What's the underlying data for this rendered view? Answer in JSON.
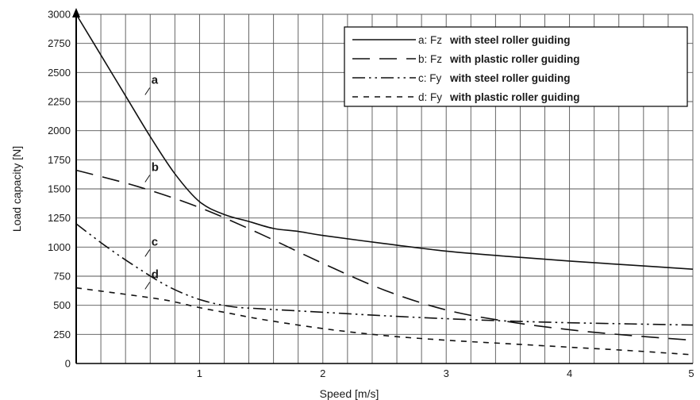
{
  "chart_data": {
    "type": "line",
    "xlabel": "Speed [m/s]",
    "ylabel": "Load capacity [N]",
    "xlim": [
      0,
      5
    ],
    "ylim": [
      0,
      3000
    ],
    "x_ticks": [
      "1",
      "2",
      "3",
      "4",
      "5"
    ],
    "y_ticks": [
      "0",
      "250",
      "500",
      "750",
      "1000",
      "1250",
      "1500",
      "1750",
      "2000",
      "2250",
      "2500",
      "2750",
      "3000"
    ],
    "grid": true,
    "legend_position": "top-right",
    "series": [
      {
        "name": "a",
        "legend_prefix": "a: Fz",
        "legend_desc": "with steel roller guiding",
        "curve_label": "a",
        "dash": "solid",
        "x": [
          0,
          0.2,
          0.4,
          0.6,
          0.8,
          1.0,
          1.2,
          1.4,
          1.6,
          1.8,
          2.0,
          2.5,
          3.0,
          3.5,
          4.0,
          4.5,
          5.0
        ],
        "y": [
          3000,
          2650,
          2300,
          1950,
          1630,
          1390,
          1280,
          1220,
          1160,
          1135,
          1100,
          1030,
          965,
          920,
          880,
          845,
          810
        ]
      },
      {
        "name": "b",
        "legend_prefix": "b: Fz",
        "legend_desc": "with plastic roller guiding",
        "curve_label": "b",
        "dash": "long-dash",
        "x": [
          0,
          0.5,
          1.0,
          1.5,
          2.0,
          2.5,
          3.0,
          3.5,
          4.0,
          4.5,
          5.0
        ],
        "y": [
          1660,
          1520,
          1340,
          1110,
          860,
          630,
          460,
          360,
          290,
          240,
          200
        ]
      },
      {
        "name": "c",
        "legend_prefix": "c: Fy",
        "legend_desc": "with steel roller guiding",
        "curve_label": "c",
        "dash": "dash-dot",
        "x": [
          0,
          0.25,
          0.5,
          0.75,
          1.0,
          1.25,
          1.5,
          2.0,
          2.5,
          3.0,
          3.5,
          4.0,
          4.5,
          5.0
        ],
        "y": [
          1200,
          1000,
          820,
          660,
          550,
          490,
          470,
          440,
          410,
          385,
          365,
          350,
          340,
          330
        ]
      },
      {
        "name": "d",
        "legend_prefix": "d: Fy",
        "legend_desc": "with plastic roller guiding",
        "curve_label": "d",
        "dash": "short-dash",
        "x": [
          0,
          0.25,
          0.5,
          0.75,
          1.0,
          1.25,
          1.5,
          2.0,
          2.5,
          3.0,
          3.5,
          4.0,
          4.5,
          5.0
        ],
        "y": [
          650,
          615,
          580,
          540,
          480,
          430,
          380,
          300,
          240,
          200,
          170,
          140,
          110,
          75
        ]
      }
    ],
    "curve_label_positions": [
      {
        "name": "a",
        "x": 0.52,
        "y": 2390
      },
      {
        "name": "b",
        "x": 0.52,
        "y": 1640
      },
      {
        "name": "c",
        "x": 0.52,
        "y": 1000
      },
      {
        "name": "d",
        "x": 0.52,
        "y": 720
      }
    ]
  }
}
